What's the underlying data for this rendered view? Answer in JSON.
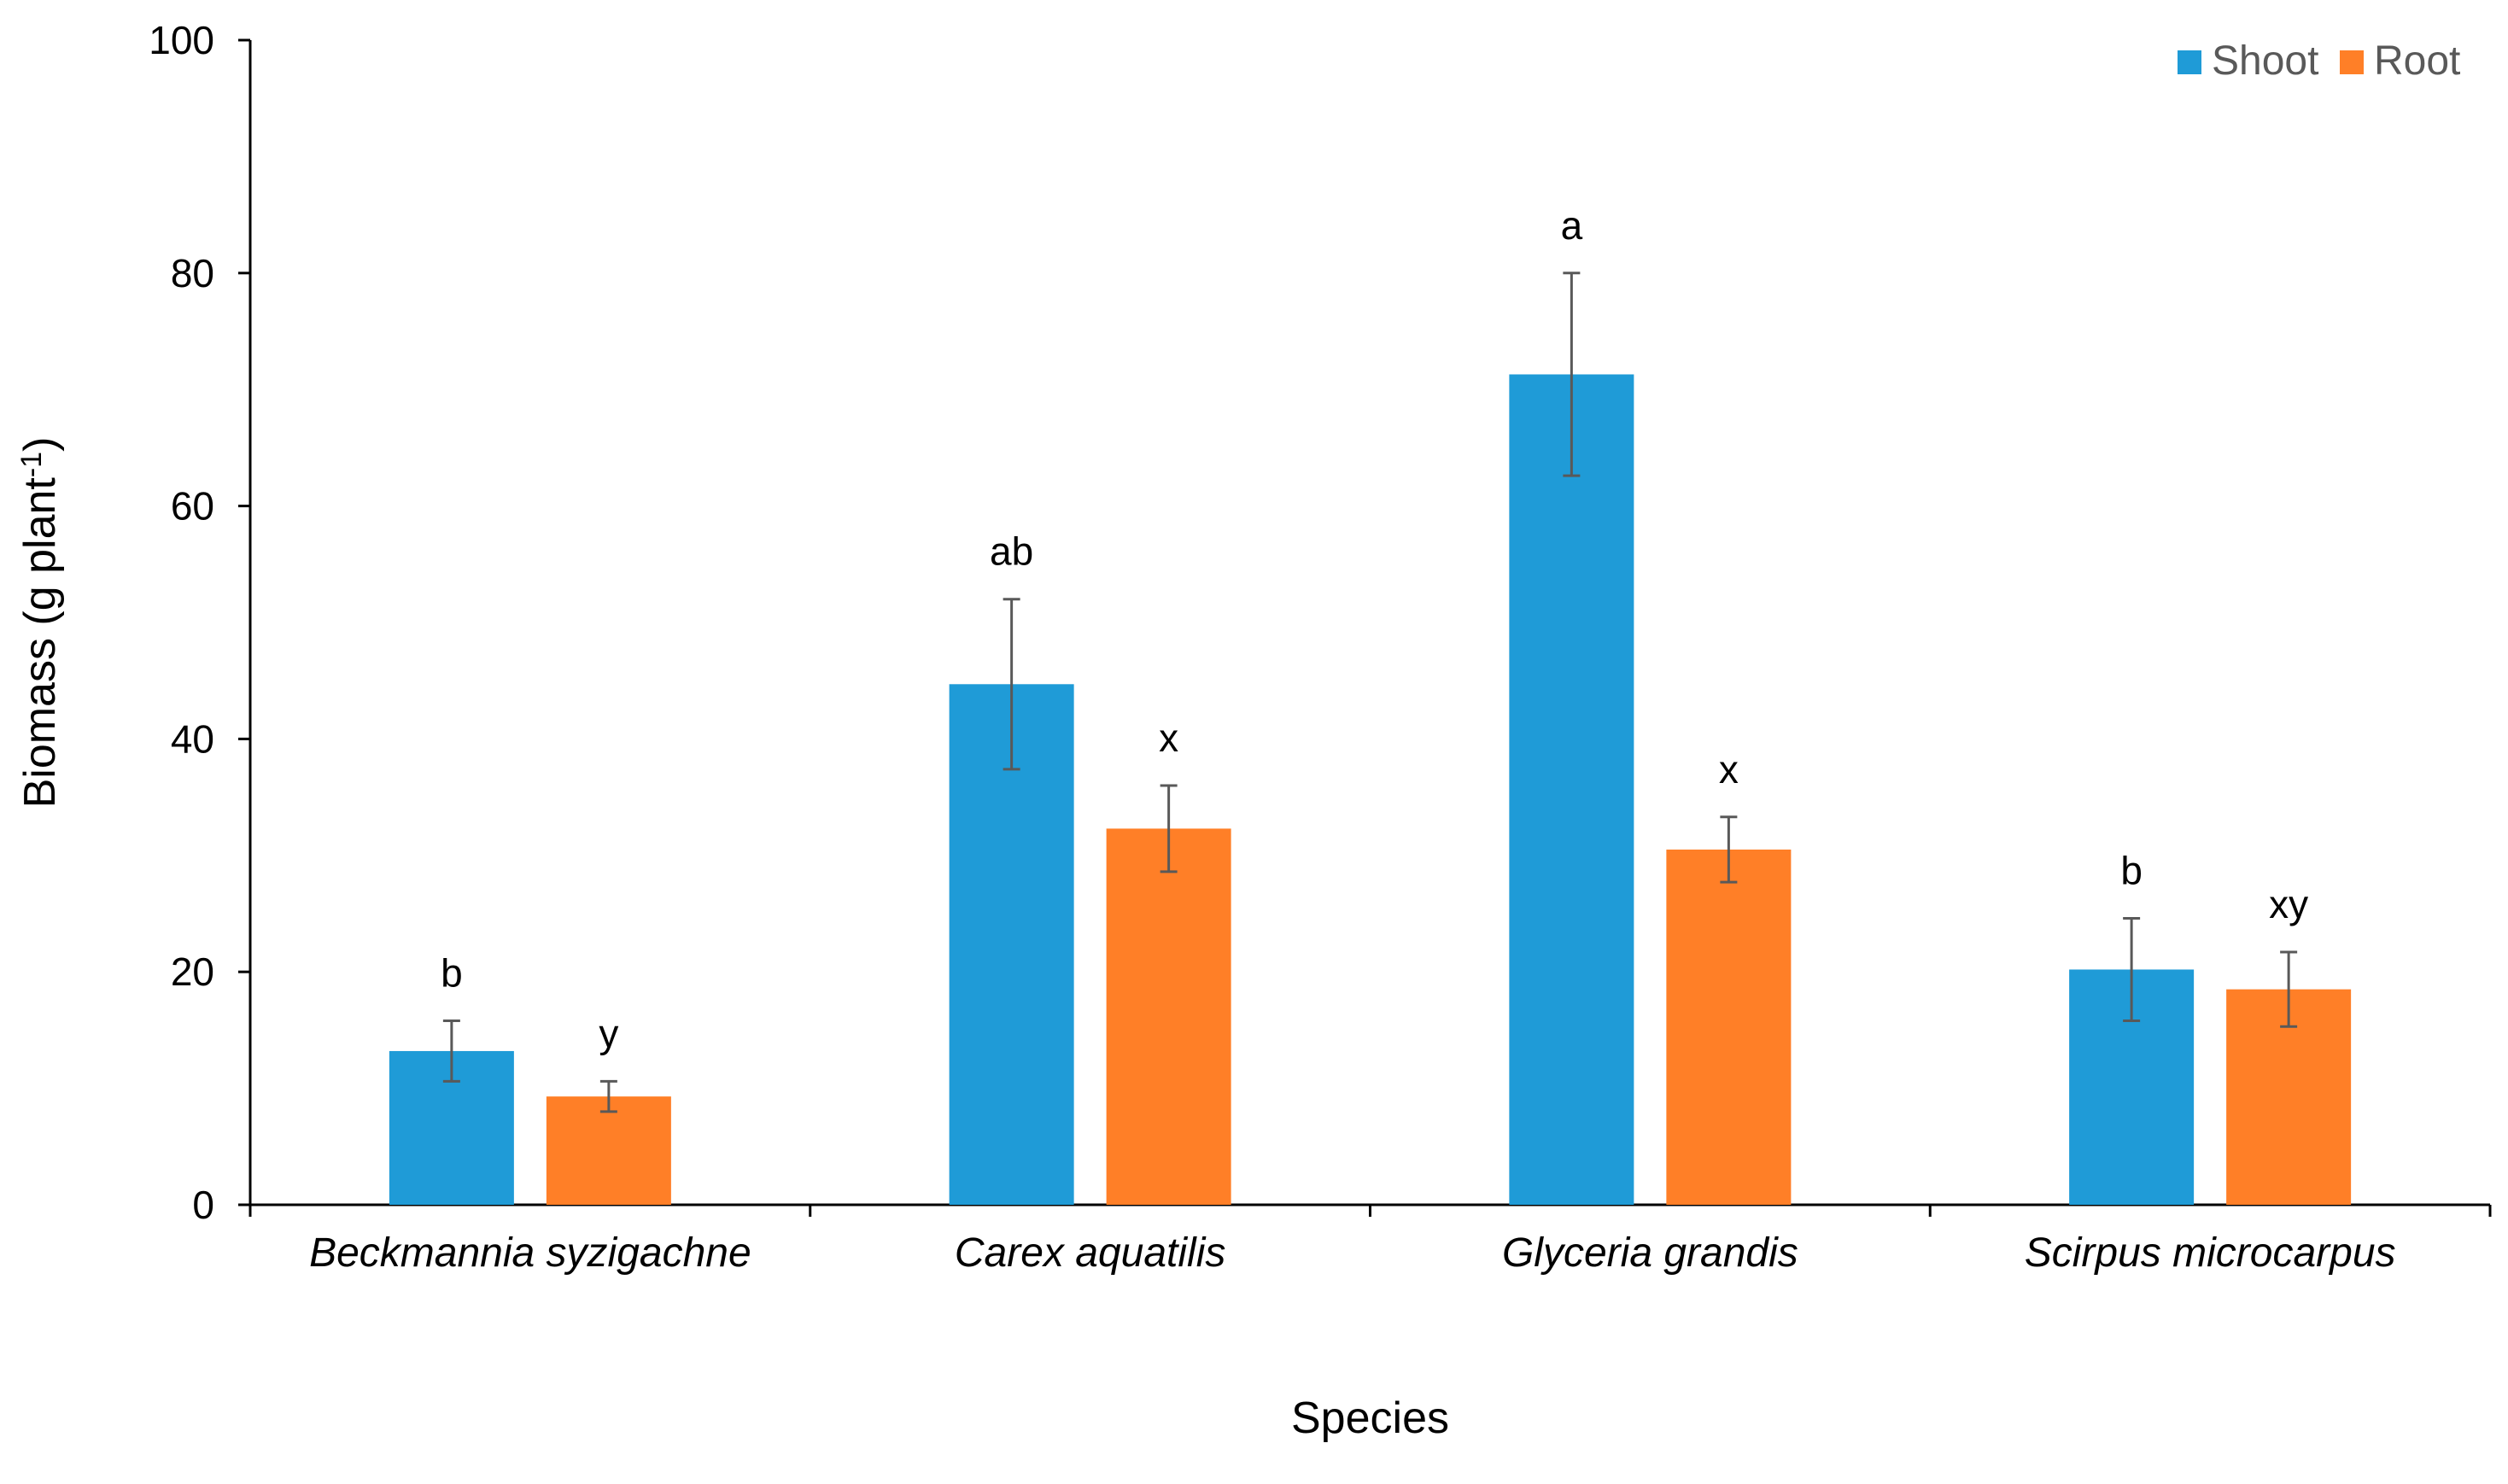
{
  "chart_data": {
    "type": "bar",
    "title": "",
    "xlabel": "Species",
    "ylabel": "Biomass (g plant",
    "ylabel_superscript": "-1",
    "ylabel_close": ")",
    "ylim": [
      0,
      100
    ],
    "yticks": [
      0,
      20,
      40,
      60,
      80,
      100
    ],
    "grid": false,
    "legend_position": "top-right",
    "categories": [
      "Beckmannia syzigachne",
      "Carex aquatilis",
      "Glyceria grandis",
      "Scirpus microcarpus"
    ],
    "series": [
      {
        "name": "Shoot",
        "color": "#1F9BD7",
        "values": [
          13.2,
          44.7,
          71.3,
          20.2
        ],
        "errors": [
          2.6,
          7.3,
          8.7,
          4.4
        ],
        "labels": [
          "b",
          "ab",
          "a",
          "b"
        ]
      },
      {
        "name": "Root",
        "color": "#FF7F27",
        "values": [
          9.3,
          32.3,
          30.5,
          18.5
        ],
        "errors": [
          1.3,
          3.7,
          2.8,
          3.2
        ],
        "labels": [
          "y",
          "x",
          "x",
          "xy"
        ]
      }
    ],
    "error_bar_color": "#595959",
    "axis_color": "#000000"
  }
}
